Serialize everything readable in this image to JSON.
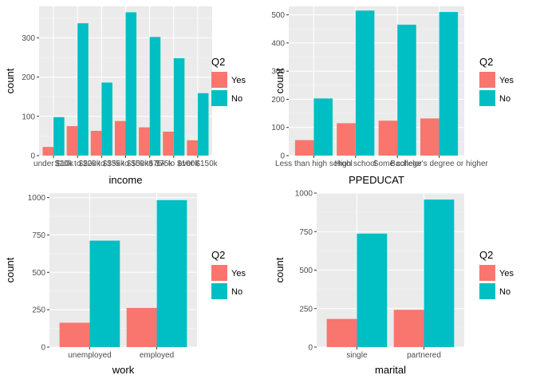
{
  "colors": {
    "yes": "#F8766D",
    "no": "#00BFC4",
    "panel": "#EBEBEB",
    "grid_major": "#FFFFFF",
    "grid_minor": "#F5F5F5"
  },
  "chart_data": [
    {
      "type": "bar",
      "title": "",
      "xlabel": "income",
      "ylabel": "count",
      "ylim": [
        0,
        380
      ],
      "yticks": [
        0,
        100,
        200,
        300
      ],
      "categories": [
        "under $10k",
        "$10k to $20k",
        "$20k to $35k",
        "$35k to $50k",
        "$50k to $75k",
        "$75k to $100k",
        "over $150k"
      ],
      "series": [
        {
          "name": "Yes",
          "values": [
            22,
            75,
            63,
            88,
            72,
            61,
            39
          ]
        },
        {
          "name": "No",
          "values": [
            98,
            337,
            186,
            365,
            302,
            248,
            159
          ]
        }
      ],
      "legend": {
        "title": "Q2",
        "position": "right"
      },
      "grid": true
    },
    {
      "type": "bar",
      "title": "",
      "xlabel": "PPEDUCAT",
      "ylabel": "count",
      "ylim": [
        0,
        530
      ],
      "yticks": [
        0,
        100,
        200,
        300,
        400,
        500
      ],
      "categories": [
        "Less than high school",
        "High school",
        "Some college",
        "Bachelor's degree or higher"
      ],
      "series": [
        {
          "name": "Yes",
          "values": [
            55,
            115,
            124,
            132
          ]
        },
        {
          "name": "No",
          "values": [
            203,
            515,
            465,
            510
          ]
        }
      ],
      "legend": {
        "title": "Q2",
        "position": "right"
      },
      "grid": true
    },
    {
      "type": "bar",
      "title": "",
      "xlabel": "work",
      "ylabel": "count",
      "ylim": [
        0,
        1030
      ],
      "yticks": [
        0,
        250,
        500,
        750,
        1000
      ],
      "categories": [
        "unemployed",
        "employed"
      ],
      "series": [
        {
          "name": "Yes",
          "values": [
            163,
            262
          ]
        },
        {
          "name": "No",
          "values": [
            712,
            983
          ]
        }
      ],
      "legend": {
        "title": "Q2",
        "position": "right"
      },
      "grid": true
    },
    {
      "type": "bar",
      "title": "",
      "xlabel": "marital",
      "ylabel": "count",
      "ylim": [
        0,
        1000
      ],
      "yticks": [
        0,
        250,
        500,
        750,
        1000
      ],
      "categories": [
        "single",
        "partnered"
      ],
      "series": [
        {
          "name": "Yes",
          "values": [
            183,
            242
          ]
        },
        {
          "name": "No",
          "values": [
            737,
            958
          ]
        }
      ],
      "legend": {
        "title": "Q2",
        "position": "right"
      },
      "grid": true
    }
  ]
}
